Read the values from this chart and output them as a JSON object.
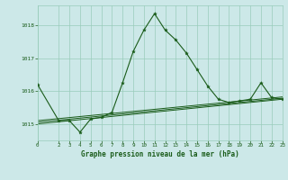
{
  "title": "Graphe pression niveau de la mer (hPa)",
  "bg_color": "#cce8e8",
  "grid_color": "#99ccbb",
  "line_color": "#1a5c1a",
  "x_min": 0,
  "x_max": 23,
  "y_min": 1014.5,
  "y_max": 1018.6,
  "y_ticks": [
    1015,
    1016,
    1017,
    1018
  ],
  "x_ticks": [
    0,
    2,
    3,
    4,
    5,
    6,
    7,
    8,
    9,
    10,
    11,
    12,
    13,
    14,
    15,
    16,
    17,
    18,
    19,
    20,
    21,
    22,
    23
  ],
  "main_x": [
    0,
    2,
    3,
    4,
    5,
    6,
    7,
    8,
    9,
    10,
    11,
    12,
    13,
    14,
    15,
    16,
    17,
    18,
    19,
    20,
    21,
    22,
    23
  ],
  "main_y": [
    1016.2,
    1015.1,
    1015.1,
    1014.75,
    1015.15,
    1015.2,
    1015.35,
    1016.25,
    1017.2,
    1017.85,
    1018.35,
    1017.85,
    1017.55,
    1017.15,
    1016.65,
    1016.15,
    1015.75,
    1015.65,
    1015.7,
    1015.75,
    1016.25,
    1015.8,
    1015.75
  ],
  "trend1_x": [
    0,
    23
  ],
  "trend1_y": [
    1015.0,
    1015.75
  ],
  "trend2_x": [
    0,
    23
  ],
  "trend2_y": [
    1015.05,
    1015.78
  ],
  "trend3_x": [
    0,
    23
  ],
  "trend3_y": [
    1015.1,
    1015.82
  ]
}
